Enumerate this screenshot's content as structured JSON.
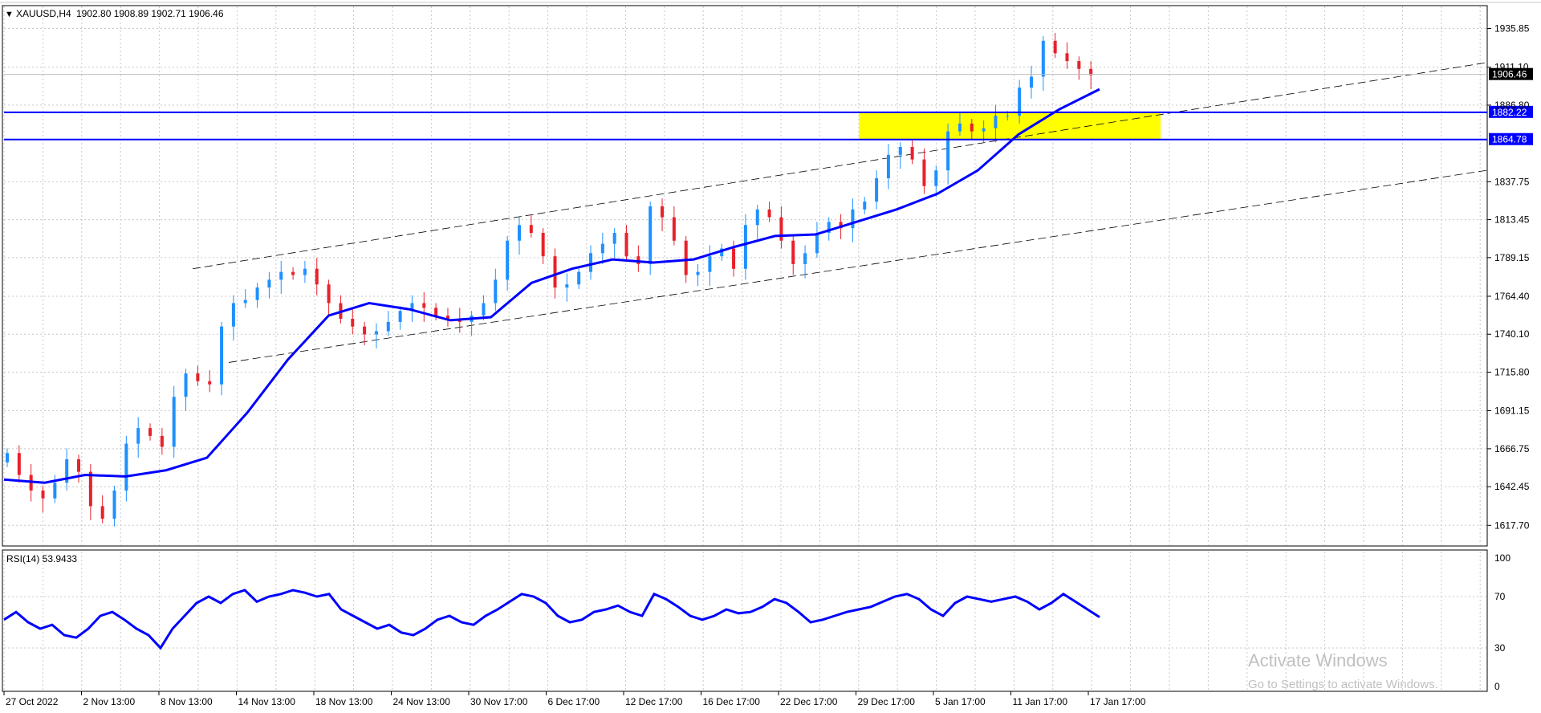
{
  "chart_data": [
    {
      "type": "candlestick",
      "title": "XAUUSD,H4",
      "ohlc_header": "1902.80 1908.89 1902.71 1906.46",
      "ylim": [
        1605,
        1950
      ],
      "y_ticks": [
        "1935.85",
        "1911.10",
        "1886.80",
        "1837.75",
        "1813.45",
        "1789.15",
        "1764.40",
        "1740.10",
        "1715.80",
        "1691.15",
        "1666.75",
        "1642.45",
        "1617.70"
      ],
      "x_labels": [
        "27 Oct 2022",
        "2 Nov 13:00",
        "8 Nov 13:00",
        "14 Nov 13:00",
        "18 Nov 13:00",
        "24 Nov 13:00",
        "30 Nov 17:00",
        "6 Dec 17:00",
        "12 Dec 17:00",
        "16 Dec 17:00",
        "22 Dec 17:00",
        "29 Dec 17:00",
        "5 Jan 17:00",
        "11 Jan 17:00",
        "17 Jan 17:00"
      ],
      "last_price": "1906.46",
      "horizontal_levels": [
        {
          "price": 1882.22,
          "label": "1882.22",
          "color": "#0000ff"
        },
        {
          "price": 1864.78,
          "label": "1864.78",
          "color": "#0000ff"
        }
      ],
      "highlight_zone": {
        "price_top": 1882.22,
        "price_bottom": 1864.78,
        "from": "29 Dec",
        "to": "19 Jan",
        "color": "#ffff00"
      },
      "trend_channel": "dashed ascending channel",
      "moving_average": {
        "color": "#0000ff",
        "points": [
          [
            0,
            1647
          ],
          [
            0.05,
            1645
          ],
          [
            0.1,
            1650
          ],
          [
            0.15,
            1649
          ],
          [
            0.2,
            1653
          ],
          [
            0.25,
            1661
          ],
          [
            0.3,
            1690
          ],
          [
            0.35,
            1724
          ],
          [
            0.4,
            1752
          ],
          [
            0.45,
            1760
          ],
          [
            0.5,
            1756
          ],
          [
            0.55,
            1749
          ],
          [
            0.6,
            1751
          ],
          [
            0.65,
            1773
          ],
          [
            0.7,
            1782
          ],
          [
            0.75,
            1788
          ],
          [
            0.8,
            1786
          ],
          [
            0.85,
            1788
          ],
          [
            0.9,
            1796
          ],
          [
            0.95,
            1803
          ],
          [
            1.0,
            1804
          ],
          [
            1.05,
            1812
          ],
          [
            1.1,
            1820
          ],
          [
            1.15,
            1830
          ],
          [
            1.2,
            1845
          ],
          [
            1.25,
            1868
          ],
          [
            1.3,
            1884
          ],
          [
            1.35,
            1897
          ]
        ]
      },
      "candles_close": [
        1664,
        1650,
        1640,
        1635,
        1645,
        1660,
        1652,
        1630,
        1622,
        1640,
        1670,
        1680,
        1675,
        1668,
        1700,
        1715,
        1710,
        1708,
        1745,
        1760,
        1762,
        1770,
        1775,
        1780,
        1778,
        1782,
        1772,
        1760,
        1750,
        1745,
        1740,
        1742,
        1748,
        1755,
        1760,
        1757,
        1752,
        1750,
        1748,
        1752,
        1760,
        1775,
        1800,
        1810,
        1805,
        1790,
        1770,
        1772,
        1780,
        1792,
        1798,
        1805,
        1790,
        1785,
        1822,
        1815,
        1800,
        1778,
        1780,
        1790,
        1795,
        1782,
        1810,
        1820,
        1815,
        1800,
        1785,
        1792,
        1805,
        1812,
        1808,
        1820,
        1825,
        1840,
        1855,
        1860,
        1852,
        1835,
        1845,
        1870,
        1875,
        1870,
        1872,
        1880,
        1880,
        1898,
        1905,
        1928,
        1920,
        1915,
        1910,
        1906
      ]
    },
    {
      "type": "line",
      "title": "RSI(14) 53.9433",
      "ylim": [
        0,
        100
      ],
      "y_ticks": [
        "100",
        "70",
        "30",
        "0"
      ],
      "series": [
        {
          "color": "#0000ff",
          "values": [
            52,
            58,
            50,
            45,
            48,
            40,
            38,
            45,
            55,
            58,
            52,
            45,
            40,
            30,
            45,
            55,
            65,
            70,
            65,
            72,
            75,
            66,
            70,
            72,
            75,
            73,
            70,
            72,
            60,
            55,
            50,
            45,
            48,
            42,
            40,
            45,
            52,
            55,
            50,
            48,
            55,
            60,
            66,
            72,
            70,
            65,
            55,
            50,
            52,
            58,
            60,
            63,
            58,
            55,
            72,
            68,
            62,
            55,
            52,
            55,
            60,
            57,
            58,
            62,
            68,
            65,
            58,
            50,
            52,
            55,
            58,
            60,
            62,
            66,
            70,
            72,
            68,
            60,
            55,
            65,
            70,
            68,
            66,
            68,
            70,
            66,
            60,
            65,
            72,
            66,
            60,
            54
          ]
        }
      ]
    },
    {
      "type": "watermark",
      "line1": "Activate Windows",
      "line2": "Go to Settings to activate Windows."
    }
  ]
}
